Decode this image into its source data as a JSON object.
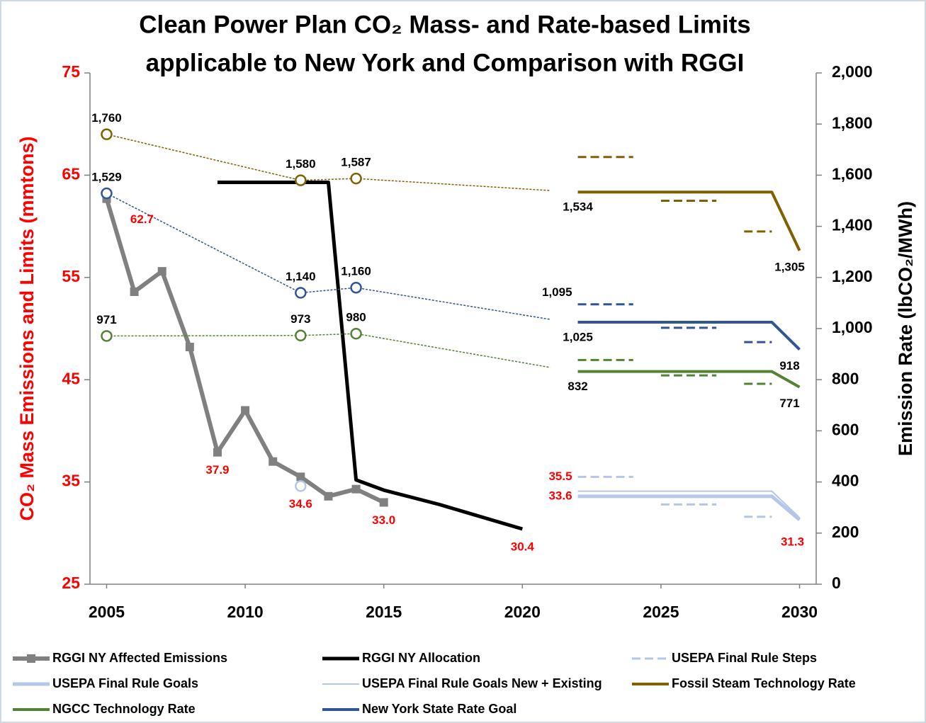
{
  "chart_data": {
    "type": "line",
    "title": [
      "Clean Power Plan CO₂ Mass- and Rate-based Limits",
      "applicable to New York and Comparison with RGGI"
    ],
    "y_label": "CO₂ Mass Emissions and Limits (mmtons)",
    "y2_label": "Emission Rate (lbCO₂/MWh)",
    "xlim": [
      2004.4,
      2030.6
    ],
    "xticks": [
      2005,
      2010,
      2015,
      2020,
      2025,
      2030
    ],
    "ylim": [
      25,
      75
    ],
    "yticks": [
      25,
      35,
      45,
      55,
      65,
      75
    ],
    "y2lim": [
      0,
      2000
    ],
    "y2ticks": [
      0,
      200,
      400,
      600,
      800,
      {
        "value": 1000,
        "label": "1,000"
      },
      {
        "value": 1200,
        "label": "1,200"
      },
      {
        "value": 1400,
        "label": "1,400"
      },
      {
        "value": 1600,
        "label": "1,600"
      },
      {
        "value": 1800,
        "label": "1,800"
      },
      {
        "value": 2000,
        "label": "2,000"
      }
    ],
    "legend": "bottom",
    "series": [
      {
        "name": "RGGI NY Affected Emissions",
        "color": "#808080",
        "axis": "y",
        "style": "solid",
        "width": 6,
        "marker": "square",
        "x": [
          2005,
          2006,
          2007,
          2008,
          2009,
          2010,
          2011,
          2012,
          2013,
          2014,
          2015
        ],
        "values": [
          62.7,
          53.6,
          55.6,
          48.2,
          37.9,
          42,
          37,
          35.5,
          33.6,
          34.3,
          33
        ],
        "value_labels": [
          "62.7",
          null,
          null,
          null,
          "37.9",
          null,
          null,
          null,
          null,
          null,
          "33.0"
        ]
      },
      {
        "name": "RGGI NY Allocation",
        "color": "#000000",
        "axis": "y",
        "style": "solid",
        "width": 5,
        "x": [
          2009,
          2013,
          2014,
          2015,
          2016,
          2017,
          2018,
          2019,
          2020
        ],
        "values": [
          64.3,
          64.3,
          35.2,
          34.2,
          33.5,
          32.8,
          32,
          31.2,
          30.4
        ],
        "value_labels": [
          null,
          null,
          null,
          null,
          null,
          null,
          null,
          null,
          "30.4"
        ]
      },
      {
        "name": "USEPA Final Rule Steps",
        "color": "#b4c7e7",
        "axis": "y",
        "style": "dashed",
        "width": 3,
        "x_start": [
          2022,
          2025,
          2028
        ],
        "x_end": [
          2024,
          2027,
          2029
        ],
        "values": [
          35.5,
          32.8,
          31.6
        ],
        "value_labels": [
          "35.5",
          null,
          null
        ]
      },
      {
        "name": "USEPA Final Rule Goals",
        "color": "#b4c7e7",
        "axis": "y",
        "style": "solid",
        "width": 5,
        "x": [
          2022,
          2029,
          2030
        ],
        "values": [
          33.6,
          33.6,
          31.3
        ],
        "value_labels": [
          "33.6",
          null,
          "31.3"
        ]
      },
      {
        "name": "USEPA Final Rule Goals New + Existing",
        "color": "#b4c7e7",
        "axis": "y",
        "style": "solid",
        "width": 2,
        "x": [
          2022,
          2029,
          2030
        ],
        "values": [
          34.1,
          34.1,
          31.5
        ]
      },
      {
        "name": "Fossil Steam Technology Rate",
        "color": "#806000",
        "axis": "y2",
        "style": "solid",
        "width": 4,
        "x": [
          2022,
          2029,
          2030
        ],
        "values": [
          1534,
          1534,
          1305
        ],
        "value_labels": [
          "1,534",
          null,
          "1,305"
        ]
      },
      {
        "name": "NGCC Technology Rate",
        "color": "#548235",
        "axis": "y2",
        "style": "solid",
        "width": 4,
        "x": [
          2022,
          2029,
          2030
        ],
        "values": [
          832,
          832,
          771
        ],
        "value_labels": [
          "832",
          null,
          "771"
        ]
      },
      {
        "name": "New York State Rate Goal",
        "color": "#2f5597",
        "axis": "y2",
        "style": "solid",
        "width": 4,
        "x": [
          2022,
          2029,
          2030
        ],
        "values": [
          1025,
          1025,
          918
        ],
        "value_labels": [
          "1,025",
          null,
          "918"
        ]
      },
      {
        "color": "#806000",
        "axis": "y2",
        "style": "dotted",
        "width": 1.5,
        "marker": "circle",
        "x": [
          2005,
          2012,
          2014,
          2021
        ],
        "values": [
          1760,
          1580,
          1587,
          1540
        ],
        "value_labels": [
          "1,760",
          "1,580",
          "1,587",
          null
        ]
      },
      {
        "color": "#548235",
        "axis": "y2",
        "style": "dotted",
        "width": 1.5,
        "marker": "circle",
        "x": [
          2005,
          2012,
          2014,
          2021
        ],
        "values": [
          971,
          973,
          980,
          848
        ],
        "value_labels": [
          "971",
          "973",
          "980",
          null
        ]
      },
      {
        "color": "#2f5597",
        "axis": "y2",
        "style": "dotted",
        "width": 1.5,
        "marker": "circle",
        "x": [
          2005,
          2012,
          2014,
          2021
        ],
        "values": [
          1529,
          1140,
          1160,
          1036
        ],
        "value_labels": [
          "1,529",
          "1,140",
          "1,160",
          null
        ]
      },
      {
        "color": "#806000",
        "axis": "y2",
        "style": "dashed",
        "width": 3,
        "x_start": [
          2022,
          2025,
          2028
        ],
        "x_end": [
          2024,
          2027,
          2029
        ],
        "values": [
          1671,
          1500,
          1380
        ]
      },
      {
        "color": "#548235",
        "axis": "y2",
        "style": "dashed",
        "width": 3,
        "x_start": [
          2022,
          2025,
          2028
        ],
        "x_end": [
          2024,
          2027,
          2029
        ],
        "values": [
          877,
          817,
          784
        ]
      },
      {
        "color": "#2f5597",
        "axis": "y2",
        "style": "dashed",
        "width": 3,
        "x_start": [
          2022,
          2025,
          2028
        ],
        "x_end": [
          2024,
          2027,
          2029
        ],
        "values": [
          1095,
          1003,
          947
        ],
        "value_labels": [
          "1,095",
          null,
          null
        ]
      },
      {
        "color": "#b4c7e7",
        "axis": "y",
        "style": "solid",
        "width": 2,
        "marker": "circle",
        "x": [
          2012
        ],
        "values": [
          34.6
        ],
        "value_labels": [
          "34.6"
        ]
      }
    ]
  }
}
